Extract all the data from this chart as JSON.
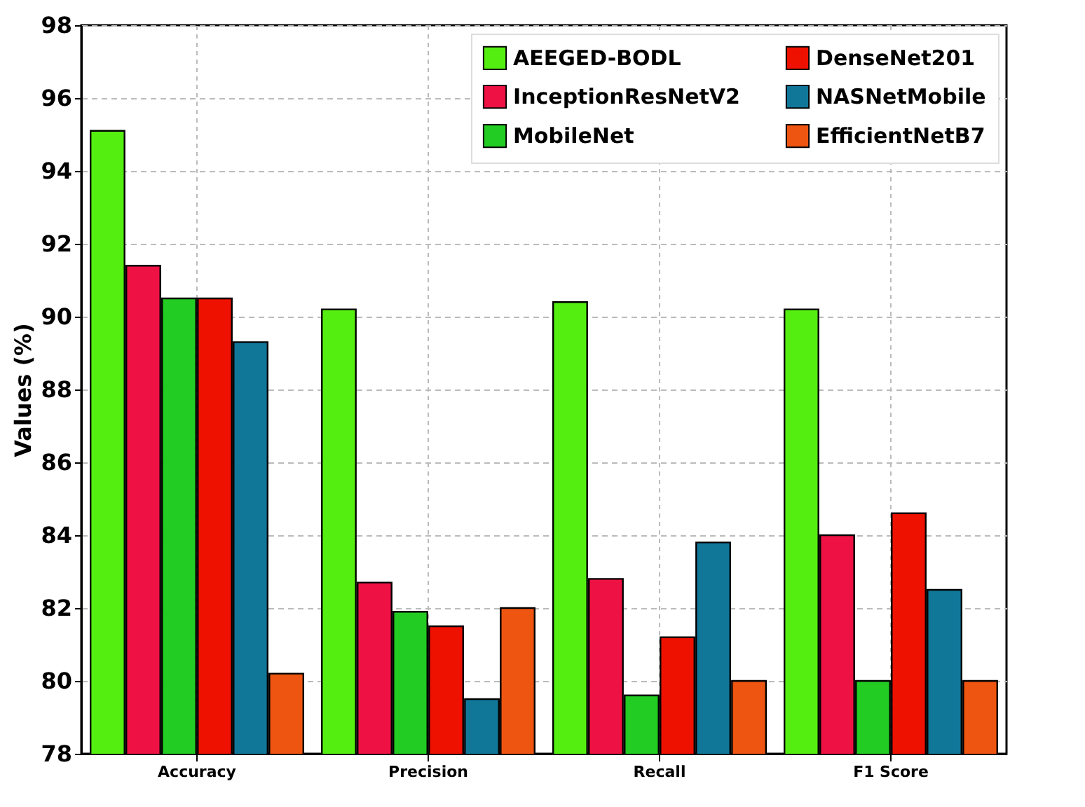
{
  "chart_data": {
    "type": "bar",
    "ylabel": "Values (%)",
    "categories": [
      "Accuracy",
      "Precision",
      "Recall",
      "F1 Score"
    ],
    "series": [
      {
        "name": "AEEGED-BODL",
        "color": "#55ee11",
        "values": [
          95.1,
          90.2,
          90.4,
          90.2
        ]
      },
      {
        "name": "InceptionResNetV2",
        "color": "#ee1144",
        "values": [
          91.4,
          82.7,
          82.8,
          84.0
        ]
      },
      {
        "name": "MobileNet",
        "color": "#22cc22",
        "values": [
          90.5,
          81.9,
          79.6,
          80.0
        ]
      },
      {
        "name": "DenseNet201",
        "color": "#ee1100",
        "values": [
          90.5,
          81.5,
          81.2,
          84.6
        ]
      },
      {
        "name": "NASNetMobile",
        "color": "#117799",
        "values": [
          89.3,
          79.5,
          83.8,
          82.5
        ]
      },
      {
        "name": "EfficientNetB7",
        "color": "#ee5511",
        "values": [
          80.2,
          82.0,
          80.0,
          80.0
        ]
      }
    ],
    "ylim": [
      78,
      98
    ],
    "yticks": [
      78,
      80,
      82,
      84,
      86,
      88,
      90,
      92,
      94,
      96,
      98
    ],
    "grid": true,
    "legend": "top right"
  }
}
